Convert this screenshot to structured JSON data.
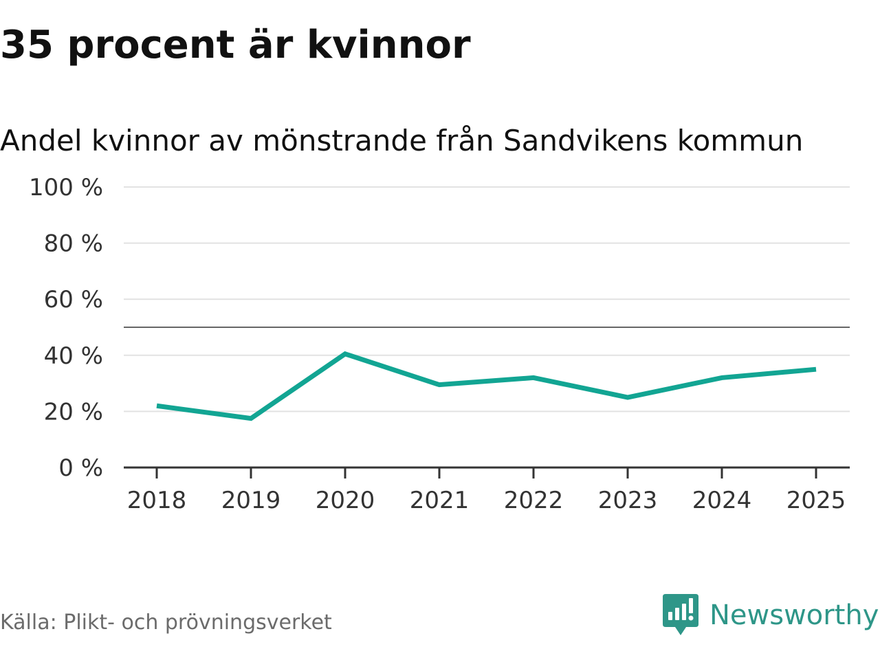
{
  "header": {
    "title": "35 procent är kvinnor",
    "subtitle": "Andel kvinnor av mönstrande från Sandvikens kommun"
  },
  "chart_data": {
    "type": "line",
    "title": "Andel kvinnor av mönstrande från Sandvikens kommun",
    "xlabel": "",
    "ylabel": "",
    "categories": [
      "2018",
      "2019",
      "2020",
      "2021",
      "2022",
      "2023",
      "2024",
      "2025"
    ],
    "series": [
      {
        "name": "Andel kvinnor",
        "values": [
          22,
          17.5,
          40.5,
          29.5,
          32,
          25,
          32,
          35
        ],
        "color": "#12a593"
      }
    ],
    "ylim": [
      0,
      100
    ],
    "yticks": [
      0,
      20,
      40,
      60,
      80,
      100
    ],
    "ytick_labels": [
      "0 %",
      "20 %",
      "40 %",
      "60 %",
      "80 %",
      "100 %"
    ],
    "reference_line": 50,
    "grid": true,
    "legend": "none"
  },
  "footer": {
    "source": "Källa: Plikt- och prövningsverket",
    "brand": "Newsworthy",
    "brand_color": "#2e9688"
  }
}
